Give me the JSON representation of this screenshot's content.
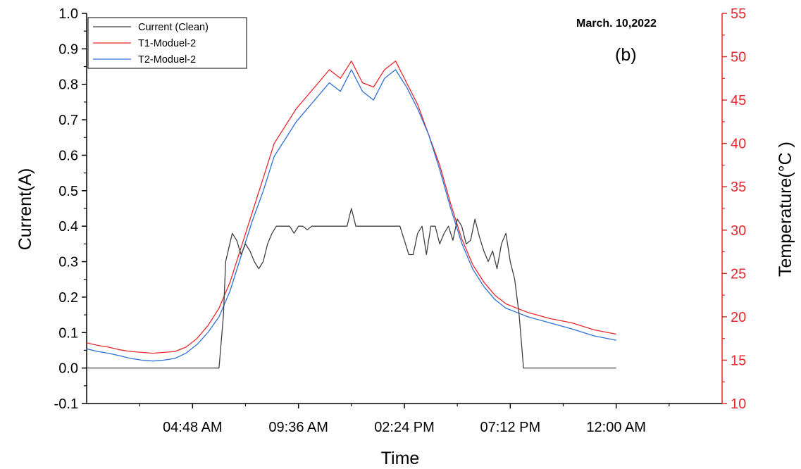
{
  "chart_data": {
    "type": "line",
    "annotation_date": "March. 10,2022",
    "panel_label": "(b)",
    "xlabel": "Time",
    "ylabel_left": "Current(A)",
    "ylabel_right": "Temperature(°C )",
    "x_tick_labels": [
      "04:48 AM",
      "09:36 AM",
      "02:24 PM",
      "07:12 PM",
      "12:00 AM"
    ],
    "x_tick_hours": [
      4.8,
      9.6,
      14.4,
      19.2,
      24.0
    ],
    "xlim_hours": [
      0.0,
      28.8
    ],
    "ylim_left": [
      -0.1,
      1.0
    ],
    "y_ticks_left": [
      "-0.1",
      "0.0",
      "0.1",
      "0.2",
      "0.3",
      "0.4",
      "0.5",
      "0.6",
      "0.7",
      "0.8",
      "0.9",
      "1.0"
    ],
    "ylim_right": [
      10,
      55
    ],
    "y_ticks_right": [
      "10",
      "15",
      "20",
      "25",
      "30",
      "35",
      "40",
      "45",
      "50",
      "55"
    ],
    "grid": false,
    "legend_position": "top-left",
    "colors": {
      "current": "#404040",
      "t1": "#e8272d",
      "t2": "#2d6fd6",
      "right_axis": "#e8272d"
    },
    "series": [
      {
        "name": "Current (Clean)",
        "axis": "left",
        "color": "#404040",
        "hours": [
          0.0,
          2.0,
          3.6,
          3.8,
          4.0,
          4.2,
          4.4,
          4.6,
          4.8,
          5.0,
          5.2,
          5.4,
          5.6,
          5.8,
          6.0,
          6.2,
          6.3,
          6.6,
          6.8,
          7.0,
          7.2,
          7.4,
          7.6,
          7.8,
          8.0,
          8.2,
          8.4,
          8.6,
          8.8,
          9.0,
          9.2,
          9.4,
          9.6,
          9.8,
          10.0,
          10.2,
          10.4,
          10.6,
          10.8,
          11.0,
          11.2,
          11.4,
          11.6,
          11.8,
          12.0,
          12.2,
          12.4,
          12.6,
          12.8,
          13.0,
          13.2,
          13.4,
          13.6,
          13.8,
          14.0,
          14.2,
          14.4,
          14.6,
          14.8,
          15.0,
          15.2,
          15.4,
          15.6,
          15.8,
          16.0,
          16.2,
          16.4,
          16.6,
          16.8,
          17.0,
          17.2,
          17.4,
          17.6,
          17.8,
          18.0,
          18.2,
          18.4,
          18.6,
          18.8,
          19.0,
          19.2,
          19.4,
          19.6,
          19.8,
          20.0,
          21.0,
          22.0,
          23.0,
          24.0
        ],
        "values": [
          0.0,
          0.0,
          0.0,
          0.0,
          0.0,
          0.0,
          0.0,
          0.0,
          0.0,
          0.0,
          0.0,
          0.0,
          0.0,
          0.0,
          0.0,
          0.15,
          0.3,
          0.38,
          0.36,
          0.32,
          0.35,
          0.33,
          0.3,
          0.28,
          0.3,
          0.35,
          0.38,
          0.4,
          0.4,
          0.4,
          0.4,
          0.38,
          0.4,
          0.4,
          0.39,
          0.4,
          0.4,
          0.4,
          0.4,
          0.4,
          0.4,
          0.4,
          0.4,
          0.4,
          0.45,
          0.4,
          0.4,
          0.4,
          0.4,
          0.4,
          0.4,
          0.4,
          0.4,
          0.4,
          0.4,
          0.4,
          0.36,
          0.32,
          0.32,
          0.38,
          0.4,
          0.32,
          0.4,
          0.4,
          0.35,
          0.38,
          0.4,
          0.36,
          0.42,
          0.4,
          0.35,
          0.36,
          0.42,
          0.37,
          0.33,
          0.3,
          0.33,
          0.28,
          0.35,
          0.38,
          0.3,
          0.25,
          0.15,
          0.0,
          0.0,
          0.0,
          0.0,
          0.0,
          0.0
        ]
      },
      {
        "name": "T1-Moduel-2",
        "axis": "right",
        "color": "#e8272d",
        "hours": [
          0.0,
          0.5,
          1.0,
          1.5,
          2.0,
          2.5,
          3.0,
          3.5,
          4.0,
          4.5,
          5.0,
          5.5,
          6.0,
          6.5,
          7.0,
          7.5,
          8.0,
          8.5,
          9.0,
          9.5,
          10.0,
          10.5,
          11.0,
          11.5,
          12.0,
          12.5,
          13.0,
          13.5,
          14.0,
          14.5,
          15.0,
          15.5,
          16.0,
          16.5,
          17.0,
          17.5,
          18.0,
          18.5,
          19.0,
          19.5,
          20.0,
          21.0,
          22.0,
          23.0,
          24.0
        ],
        "values": [
          17.0,
          16.7,
          16.5,
          16.2,
          16.0,
          15.9,
          15.8,
          15.9,
          16.0,
          16.5,
          17.5,
          19.0,
          21.0,
          24.0,
          28.0,
          32.0,
          36.0,
          40.0,
          42.0,
          44.0,
          45.5,
          47.0,
          48.5,
          47.5,
          49.5,
          47.0,
          46.5,
          48.5,
          49.5,
          47.0,
          44.5,
          41.0,
          37.5,
          33.0,
          29.0,
          26.0,
          24.0,
          22.5,
          21.5,
          21.0,
          20.5,
          19.8,
          19.3,
          18.5,
          18.0
        ]
      },
      {
        "name": "T2-Moduel-2",
        "axis": "right",
        "color": "#2d6fd6",
        "hours": [
          0.0,
          0.5,
          1.0,
          1.5,
          2.0,
          2.5,
          3.0,
          3.5,
          4.0,
          4.5,
          5.0,
          5.5,
          6.0,
          6.5,
          7.0,
          7.5,
          8.0,
          8.5,
          9.0,
          9.5,
          10.0,
          10.5,
          11.0,
          11.5,
          12.0,
          12.5,
          13.0,
          13.5,
          14.0,
          14.5,
          15.0,
          15.5,
          16.0,
          16.5,
          17.0,
          17.5,
          18.0,
          18.5,
          19.0,
          19.5,
          20.0,
          21.0,
          22.0,
          23.0,
          24.0
        ],
        "values": [
          16.3,
          16.0,
          15.8,
          15.5,
          15.2,
          15.0,
          14.9,
          15.0,
          15.2,
          15.8,
          16.8,
          18.2,
          20.0,
          23.0,
          27.0,
          31.0,
          34.5,
          38.5,
          40.5,
          42.5,
          44.0,
          45.5,
          47.0,
          46.0,
          48.5,
          46.0,
          45.0,
          47.5,
          48.5,
          46.5,
          44.0,
          41.0,
          37.0,
          32.5,
          28.5,
          25.5,
          23.5,
          22.0,
          21.0,
          20.5,
          20.0,
          19.3,
          18.6,
          17.8,
          17.3
        ]
      }
    ]
  }
}
